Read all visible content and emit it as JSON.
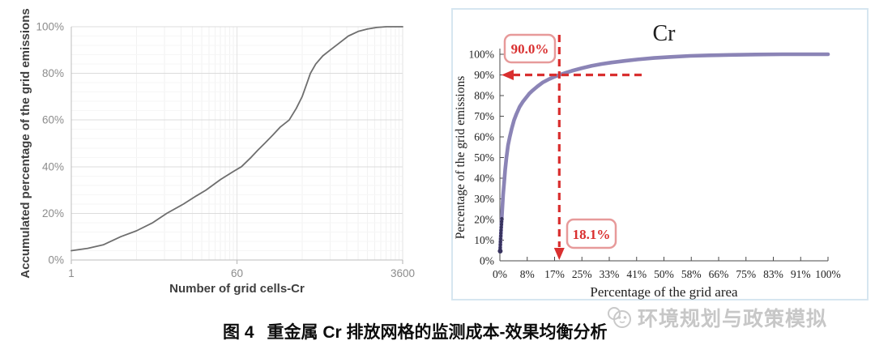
{
  "caption": {
    "label": "图 4",
    "text": "重金属 Cr 排放网格的监测成本-效果均衡分析"
  },
  "watermark": {
    "logo_icon": "panda-face-logo-icon",
    "text": "环境规划与政策模拟",
    "color": "#c7c7c7"
  },
  "colors": {
    "left_curve": "#6e6e6e",
    "left_axis": "#bdbdbd",
    "left_tick_text": "#8c8c8c",
    "left_axis_title": "#3f3f3f",
    "grid_major": "#dcdcdc",
    "grid_minor": "#f2f2f2",
    "right_curve": "#8b84b6",
    "right_dot": "#37325e",
    "right_axis": "#4a4a4a",
    "right_text": "#1f1f1f",
    "annotation_red": "#d92f2f",
    "annotation_box_border": "#e79a9a",
    "panel_border": "#d6e6f0"
  },
  "chart_data": [
    {
      "type": "line",
      "title": "",
      "xlabel": "Number of grid cells-Cr",
      "ylabel": "Accumulated percentage of the grid emissions",
      "x_scale": "log",
      "xlim": [
        1,
        3600
      ],
      "ylim": [
        0,
        100
      ],
      "x_ticks": [
        {
          "value": 1,
          "label": "1"
        },
        {
          "value": 60,
          "label": "60"
        },
        {
          "value": 3600,
          "label": "3600"
        }
      ],
      "y_ticks": [
        {
          "value": 0,
          "label": "0%"
        },
        {
          "value": 20,
          "label": "20%"
        },
        {
          "value": 40,
          "label": "40%"
        },
        {
          "value": 60,
          "label": "60%"
        },
        {
          "value": 80,
          "label": "80%"
        },
        {
          "value": 100,
          "label": "100%"
        }
      ],
      "grid": "major-and-minor",
      "legend": "none",
      "points": [
        [
          1,
          4
        ],
        [
          1.5,
          5
        ],
        [
          2.2,
          6.5
        ],
        [
          3.4,
          10
        ],
        [
          5,
          12.5
        ],
        [
          7.5,
          16
        ],
        [
          10.6,
          20
        ],
        [
          16,
          24
        ],
        [
          22,
          27.5
        ],
        [
          28,
          30
        ],
        [
          40,
          34.5
        ],
        [
          55,
          38
        ],
        [
          67,
          40
        ],
        [
          85,
          44
        ],
        [
          100,
          47
        ],
        [
          119,
          50
        ],
        [
          145,
          53.5
        ],
        [
          175,
          57
        ],
        [
          218,
          60
        ],
        [
          260,
          65
        ],
        [
          300,
          70
        ],
        [
          340,
          76
        ],
        [
          368,
          80
        ],
        [
          420,
          84
        ],
        [
          500,
          87.5
        ],
        [
          600,
          90
        ],
        [
          750,
          93
        ],
        [
          940,
          96
        ],
        [
          1200,
          98
        ],
        [
          1500,
          99
        ],
        [
          1900,
          99.7
        ],
        [
          2400,
          100
        ],
        [
          3600,
          100
        ]
      ]
    },
    {
      "type": "line+scatter",
      "title": "Cr",
      "xlabel": "Percentage of the grid area",
      "ylabel": "Percentage of the grid emissions",
      "xlim": [
        0,
        100
      ],
      "ylim": [
        0,
        100
      ],
      "x_ticks": [
        {
          "value": 0,
          "label": "0%"
        },
        {
          "value": 8.33,
          "label": "8%"
        },
        {
          "value": 16.67,
          "label": "17%"
        },
        {
          "value": 25,
          "label": "25%"
        },
        {
          "value": 33.33,
          "label": "33%"
        },
        {
          "value": 41.67,
          "label": "41%"
        },
        {
          "value": 50,
          "label": "50%"
        },
        {
          "value": 58.33,
          "label": "58%"
        },
        {
          "value": 66.67,
          "label": "66%"
        },
        {
          "value": 75,
          "label": "75%"
        },
        {
          "value": 83.33,
          "label": "83%"
        },
        {
          "value": 91.67,
          "label": "91%"
        },
        {
          "value": 100,
          "label": "100%"
        }
      ],
      "y_ticks": [
        {
          "value": 0,
          "label": "0%"
        },
        {
          "value": 10,
          "label": "10%"
        },
        {
          "value": 20,
          "label": "20%"
        },
        {
          "value": 30,
          "label": "30%"
        },
        {
          "value": 40,
          "label": "40%"
        },
        {
          "value": 50,
          "label": "50%"
        },
        {
          "value": 60,
          "label": "60%"
        },
        {
          "value": 70,
          "label": "70%"
        },
        {
          "value": 80,
          "label": "80%"
        },
        {
          "value": 90,
          "label": "90%"
        },
        {
          "value": 100,
          "label": "100%"
        }
      ],
      "grid": "off",
      "legend": "none",
      "points": [
        [
          0.05,
          4.7
        ],
        [
          0.15,
          8
        ],
        [
          0.25,
          11
        ],
        [
          0.35,
          14
        ],
        [
          0.45,
          17
        ],
        [
          0.55,
          20
        ],
        [
          0.7,
          24
        ],
        [
          0.85,
          28
        ],
        [
          1,
          32
        ],
        [
          1.3,
          38
        ],
        [
          1.6,
          44
        ],
        [
          2,
          50
        ],
        [
          2.5,
          56
        ],
        [
          3,
          60
        ],
        [
          3.6,
          64
        ],
        [
          4.3,
          68
        ],
        [
          5,
          71
        ],
        [
          6,
          74.5
        ],
        [
          7,
          77
        ],
        [
          8,
          79
        ],
        [
          9,
          81
        ],
        [
          10,
          82.5
        ],
        [
          11.5,
          84.5
        ],
        [
          13,
          86.3
        ],
        [
          15,
          88
        ],
        [
          16.5,
          89
        ],
        [
          18.1,
          90
        ],
        [
          20,
          91
        ],
        [
          22,
          92
        ],
        [
          25,
          93.3
        ],
        [
          28,
          94.4
        ],
        [
          31,
          95.3
        ],
        [
          34,
          96
        ],
        [
          38,
          96.8
        ],
        [
          42,
          97.5
        ],
        [
          47,
          98.2
        ],
        [
          52,
          98.7
        ],
        [
          58,
          99.2
        ],
        [
          64,
          99.5
        ],
        [
          70,
          99.7
        ],
        [
          78,
          99.9
        ],
        [
          86,
          100
        ],
        [
          100,
          100
        ]
      ],
      "scatter_points": [
        [
          0.1,
          4.7
        ],
        [
          0.12,
          6.3
        ],
        [
          0.15,
          7.8
        ],
        [
          0.18,
          9.2
        ],
        [
          0.22,
          10.6
        ],
        [
          0.26,
          12
        ],
        [
          0.3,
          13.4
        ],
        [
          0.35,
          14.8
        ],
        [
          0.4,
          16.2
        ],
        [
          0.46,
          17.6
        ],
        [
          0.52,
          19
        ],
        [
          0.6,
          20.4
        ]
      ],
      "annotations": {
        "h_dash_line": {
          "y": 90,
          "x_from": 0,
          "x_to": 43.5,
          "arrow": "left"
        },
        "v_dash_line": {
          "x": 18.1,
          "y_from": 0,
          "y_to": 109.5,
          "arrow": "down"
        },
        "emission_label": "90.0%",
        "area_label": "18.1%",
        "crossing_point": [
          18.1,
          90
        ]
      }
    }
  ]
}
